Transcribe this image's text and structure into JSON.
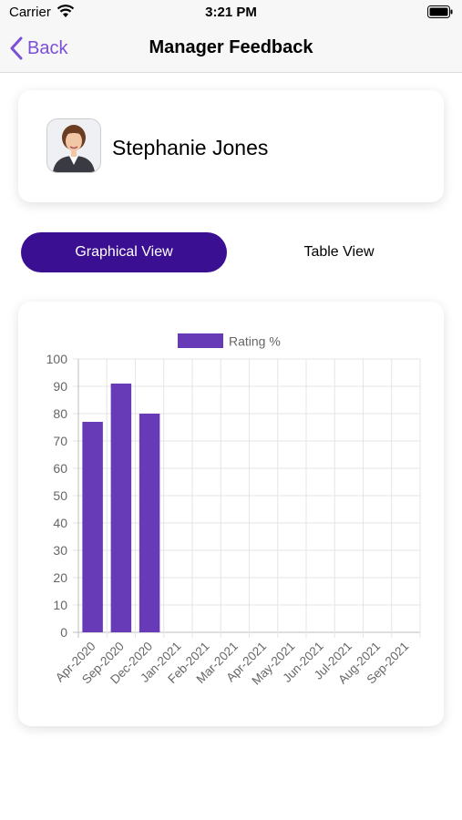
{
  "status_bar": {
    "carrier": "Carrier",
    "time": "3:21 PM"
  },
  "nav": {
    "back_label": "Back",
    "title": "Manager Feedback"
  },
  "profile": {
    "name": "Stephanie Jones"
  },
  "segment": {
    "graphical_label": "Graphical View",
    "table_label": "Table View"
  },
  "colors": {
    "accent": "#7b4fd6",
    "segment_active": "#3b0f92",
    "bar": "#673ab7"
  },
  "chart_data": {
    "type": "bar",
    "categories": [
      "Apr-2020",
      "Sep-2020",
      "Dec-2020",
      "Jan-2021",
      "Feb-2021",
      "Mar-2021",
      "Apr-2021",
      "May-2021",
      "Jun-2021",
      "Jul-2021",
      "Aug-2021",
      "Sep-2021"
    ],
    "series": [
      {
        "name": "Rating %",
        "values": [
          77,
          91,
          80,
          null,
          null,
          null,
          null,
          null,
          null,
          null,
          null,
          null
        ]
      }
    ],
    "yticks": [
      0,
      10,
      20,
      30,
      40,
      50,
      60,
      70,
      80,
      90,
      100
    ],
    "ylim": [
      0,
      100
    ],
    "grid": true,
    "legend": "top-center"
  }
}
